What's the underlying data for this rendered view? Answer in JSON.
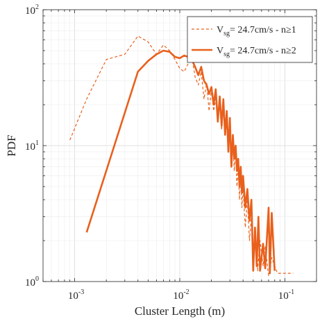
{
  "chart_data": {
    "type": "line",
    "xlabel": "Cluster Length (m)",
    "ylabel": "PDF",
    "xscale": "log",
    "yscale": "log",
    "xlim": [
      0.0005,
      0.2
    ],
    "ylim": [
      1,
      100
    ],
    "grid": true,
    "legend_position": "top-right",
    "x_ticks": [
      {
        "value": 0.001,
        "base": "10",
        "exp": "-3"
      },
      {
        "value": 0.01,
        "base": "10",
        "exp": "-2"
      },
      {
        "value": 0.1,
        "base": "10",
        "exp": "-1"
      }
    ],
    "y_ticks": [
      {
        "value": 1,
        "base": "10",
        "exp": "0"
      },
      {
        "value": 10,
        "base": "10",
        "exp": "1"
      },
      {
        "value": 100,
        "base": "10",
        "exp": "2"
      }
    ],
    "series": [
      {
        "legend_main": "V",
        "legend_sub": "sg",
        "legend_rest": "= 24.7cm/s - n≥1",
        "color": "#e8601c",
        "style": "dashed",
        "points": [
          [
            0.0009,
            11
          ],
          [
            0.0013,
            22
          ],
          [
            0.002,
            43
          ],
          [
            0.003,
            47
          ],
          [
            0.004,
            64
          ],
          [
            0.005,
            58
          ],
          [
            0.006,
            47
          ],
          [
            0.007,
            55
          ],
          [
            0.008,
            50
          ],
          [
            0.009,
            43
          ],
          [
            0.01,
            37
          ],
          [
            0.011,
            35
          ],
          [
            0.012,
            40
          ],
          [
            0.013,
            45
          ],
          [
            0.014,
            32
          ],
          [
            0.015,
            28
          ],
          [
            0.016,
            35
          ],
          [
            0.017,
            22
          ],
          [
            0.018,
            29
          ],
          [
            0.019,
            18
          ],
          [
            0.02,
            26
          ],
          [
            0.021,
            18
          ],
          [
            0.022,
            22
          ],
          [
            0.023,
            15
          ],
          [
            0.024,
            20
          ],
          [
            0.025,
            13
          ],
          [
            0.026,
            19
          ],
          [
            0.027,
            12
          ],
          [
            0.028,
            15
          ],
          [
            0.029,
            9
          ],
          [
            0.03,
            13
          ],
          [
            0.031,
            8
          ],
          [
            0.032,
            11
          ],
          [
            0.033,
            6.5
          ],
          [
            0.034,
            9
          ],
          [
            0.035,
            5
          ],
          [
            0.036,
            7
          ],
          [
            0.037,
            4
          ],
          [
            0.038,
            6
          ],
          [
            0.039,
            3.5
          ],
          [
            0.04,
            5
          ],
          [
            0.042,
            2.5
          ],
          [
            0.044,
            4
          ],
          [
            0.046,
            2
          ],
          [
            0.048,
            3
          ],
          [
            0.05,
            1.6
          ],
          [
            0.052,
            2.4
          ],
          [
            0.055,
            1.2
          ],
          [
            0.058,
            2
          ],
          [
            0.062,
            1.3
          ],
          [
            0.065,
            1.8
          ],
          [
            0.07,
            1.1
          ],
          [
            0.075,
            1.5
          ],
          [
            0.085,
            1.15
          ],
          [
            0.1,
            1.15
          ],
          [
            0.12,
            1.15
          ]
        ]
      },
      {
        "legend_main": "V",
        "legend_sub": "sg",
        "legend_rest": "= 24.7cm/s - n≥2",
        "color": "#e8601c",
        "style": "solid",
        "points": [
          [
            0.0013,
            2.3
          ],
          [
            0.004,
            35
          ],
          [
            0.005,
            42
          ],
          [
            0.006,
            47
          ],
          [
            0.007,
            50
          ],
          [
            0.008,
            49
          ],
          [
            0.009,
            45
          ],
          [
            0.01,
            44
          ],
          [
            0.011,
            46
          ],
          [
            0.012,
            45
          ],
          [
            0.013,
            43
          ],
          [
            0.014,
            38
          ],
          [
            0.015,
            33
          ],
          [
            0.016,
            38
          ],
          [
            0.017,
            30
          ],
          [
            0.018,
            28
          ],
          [
            0.019,
            24
          ],
          [
            0.02,
            27
          ],
          [
            0.021,
            20
          ],
          [
            0.022,
            26
          ],
          [
            0.023,
            15
          ],
          [
            0.024,
            23
          ],
          [
            0.025,
            14
          ],
          [
            0.026,
            22
          ],
          [
            0.027,
            12
          ],
          [
            0.028,
            18
          ],
          [
            0.029,
            9
          ],
          [
            0.03,
            16
          ],
          [
            0.031,
            7
          ],
          [
            0.032,
            12
          ],
          [
            0.033,
            8
          ],
          [
            0.034,
            10
          ],
          [
            0.035,
            6.5
          ],
          [
            0.036,
            8
          ],
          [
            0.037,
            5
          ],
          [
            0.038,
            7
          ],
          [
            0.039,
            4.5
          ],
          [
            0.04,
            6
          ],
          [
            0.042,
            3.5
          ],
          [
            0.044,
            4.8
          ],
          [
            0.046,
            2.8
          ],
          [
            0.048,
            4
          ],
          [
            0.05,
            1.2
          ],
          [
            0.052,
            2.5
          ],
          [
            0.054,
            1.3
          ],
          [
            0.056,
            3
          ],
          [
            0.058,
            1.2
          ],
          [
            0.062,
            1.9
          ],
          [
            0.065,
            1.25
          ],
          [
            0.07,
            3.5
          ],
          [
            0.072,
            1.15
          ],
          [
            0.075,
            3.2
          ],
          [
            0.08,
            1.2
          ]
        ]
      }
    ]
  }
}
